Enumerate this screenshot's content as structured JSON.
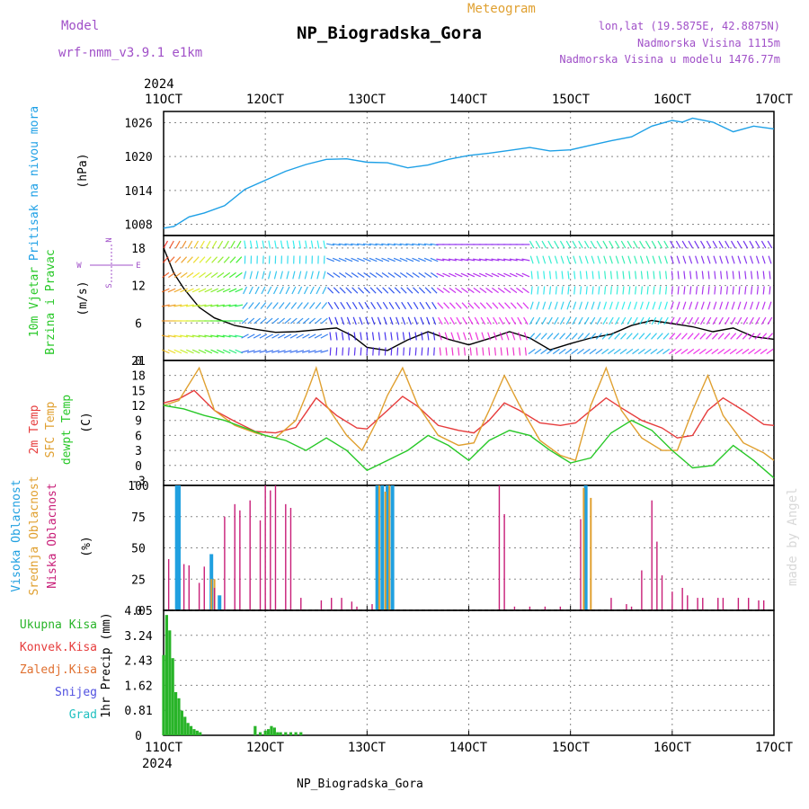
{
  "header": {
    "model_label": "Model",
    "model_name": "wrf-nmm_v3.9.1 e1km",
    "meteogram_label": "Meteogram",
    "station_title": "NP_Biogradska_Gora",
    "lonlat": "lon,lat (19.5875E, 42.8875N)",
    "elevation": "Nadmorska Visina 1115m",
    "model_elevation": "Nadmorska Visina u modelu 1476.77m",
    "year_top": "2024",
    "year_bottom": "2024",
    "footer_station": "NP_Biogradska_Gora",
    "watermark": "made by Angel"
  },
  "colors": {
    "pressure": "#1ea0e6",
    "temp2m": "#e63c3c",
    "sfc": "#e0a030",
    "dew": "#28c828",
    "precip": "#28b428",
    "label_purple": "#a050c8",
    "high_cloud": "#20a0e0",
    "mid_cloud": "#e0a030",
    "low_cloud": "#c81e78",
    "grid": "#888888"
  },
  "chart_data": [
    {
      "type": "line",
      "panel": "pressure",
      "ylabel_lines": [
        "Pritisak na nivou mora"
      ],
      "unit": "(hPa)",
      "x_ticks": [
        "11OCT",
        "12OCT",
        "13OCT",
        "14OCT",
        "15OCT",
        "16OCT",
        "17OCT"
      ],
      "ylim": [
        1006,
        1028
      ],
      "y_ticks": [
        1008,
        1014,
        1020,
        1026
      ],
      "grid": true,
      "series": [
        {
          "x": [
            11.0,
            11.1,
            11.25,
            11.4,
            11.6,
            11.8,
            12.0,
            12.2,
            12.4,
            12.6,
            12.8,
            13.0,
            13.2,
            13.4,
            13.6,
            13.8,
            14.0,
            14.2,
            14.4,
            14.6,
            14.8,
            15.0,
            15.2,
            15.4,
            15.6,
            15.8,
            16.0,
            16.1,
            16.2,
            16.4,
            16.6,
            16.8,
            17.0
          ],
          "y": [
            1007.3,
            1007.6,
            1009.3,
            1010.0,
            1011.3,
            1014.2,
            1015.8,
            1017.4,
            1018.6,
            1019.5,
            1019.6,
            1019.0,
            1018.9,
            1018.0,
            1018.5,
            1019.5,
            1020.2,
            1020.6,
            1021.1,
            1021.6,
            1021.0,
            1021.2,
            1022.0,
            1022.8,
            1023.5,
            1025.4,
            1026.4,
            1026.1,
            1026.8,
            1026.1,
            1024.4,
            1025.4,
            1024.9
          ]
        }
      ]
    },
    {
      "type": "line",
      "panel": "wind",
      "ylabel_lines": [
        "10m Vjetar",
        "Brzina i Pravac"
      ],
      "unit": "(m/s)",
      "compass": [
        "N",
        "W",
        "E",
        "S"
      ],
      "ylim": [
        0,
        20
      ],
      "y_ticks": [
        0,
        6,
        12,
        18
      ],
      "grid": true,
      "series": [
        {
          "x": [
            11.0,
            11.1,
            11.2,
            11.35,
            11.5,
            11.7,
            11.9,
            12.1,
            12.3,
            12.5,
            12.7,
            12.85,
            13.0,
            13.2,
            13.4,
            13.6,
            13.8,
            14.0,
            14.2,
            14.4,
            14.6,
            14.8,
            15.0,
            15.2,
            15.4,
            15.6,
            15.8,
            16.0,
            16.2,
            16.4,
            16.6,
            16.8,
            17.0
          ],
          "y": [
            18.0,
            14.0,
            11.5,
            8.5,
            6.8,
            5.6,
            5.0,
            4.5,
            4.6,
            4.9,
            5.2,
            4.0,
            2.1,
            1.6,
            3.3,
            4.6,
            3.4,
            2.5,
            3.5,
            4.6,
            3.6,
            1.7,
            2.7,
            3.6,
            4.2,
            5.6,
            6.4,
            5.9,
            5.4,
            4.6,
            5.2,
            3.8,
            3.4
          ]
        }
      ]
    },
    {
      "type": "line",
      "panel": "temperature",
      "ylabel_lines": [
        "2m Temp",
        "SFC Temp",
        "dewpt Temp"
      ],
      "unit": "(C)",
      "ylim": [
        -4,
        21
      ],
      "y_ticks": [
        -3,
        0,
        3,
        6,
        9,
        12,
        15,
        18,
        21
      ],
      "grid": true,
      "series": [
        {
          "name": "2m Temp",
          "x": [
            11.0,
            11.15,
            11.3,
            11.5,
            11.7,
            11.9,
            12.1,
            12.3,
            12.5,
            12.7,
            12.9,
            13.0,
            13.2,
            13.35,
            13.5,
            13.7,
            13.9,
            14.05,
            14.2,
            14.35,
            14.5,
            14.7,
            14.9,
            15.05,
            15.2,
            15.35,
            15.5,
            15.7,
            15.9,
            16.05,
            16.2,
            16.35,
            16.5,
            16.7,
            16.9,
            17.0
          ],
          "y": [
            12.5,
            13.3,
            15.0,
            11.0,
            8.8,
            6.8,
            6.5,
            7.6,
            13.5,
            10.0,
            7.5,
            7.3,
            11.0,
            13.8,
            11.8,
            8.0,
            7.0,
            6.5,
            9.0,
            12.5,
            11.0,
            8.5,
            8.0,
            8.5,
            11.0,
            13.5,
            11.5,
            9.0,
            7.5,
            5.5,
            6.0,
            11.0,
            13.5,
            11.0,
            8.2,
            8.0
          ]
        },
        {
          "name": "SFC Temp",
          "x": [
            11.0,
            11.15,
            11.35,
            11.5,
            11.7,
            11.9,
            12.1,
            12.3,
            12.4,
            12.5,
            12.6,
            12.8,
            12.95,
            13.1,
            13.2,
            13.35,
            13.5,
            13.7,
            13.9,
            14.05,
            14.2,
            14.35,
            14.5,
            14.7,
            14.9,
            15.05,
            15.2,
            15.35,
            15.5,
            15.7,
            15.9,
            16.05,
            16.2,
            16.35,
            16.5,
            16.7,
            16.9,
            17.0
          ],
          "y": [
            12.0,
            13.0,
            19.5,
            11.0,
            8.0,
            6.5,
            5.5,
            9.0,
            14.0,
            19.5,
            12.0,
            6.0,
            3.0,
            9.0,
            14.0,
            19.5,
            12.0,
            6.0,
            4.0,
            4.5,
            11.0,
            18.0,
            12.0,
            5.0,
            2.0,
            1.0,
            12.0,
            19.5,
            11.0,
            5.5,
            3.0,
            3.0,
            11.0,
            18.0,
            10.0,
            4.5,
            2.5,
            1.0
          ]
        },
        {
          "name": "dewpt Temp",
          "x": [
            11.0,
            11.2,
            11.4,
            11.6,
            11.8,
            12.0,
            12.2,
            12.4,
            12.6,
            12.8,
            13.0,
            13.2,
            13.4,
            13.6,
            13.8,
            14.0,
            14.2,
            14.4,
            14.6,
            14.8,
            15.0,
            15.2,
            15.4,
            15.6,
            15.8,
            16.0,
            16.2,
            16.4,
            16.6,
            16.8,
            17.0
          ],
          "y": [
            12.0,
            11.3,
            10.0,
            9.0,
            7.5,
            6.0,
            5.0,
            3.0,
            5.5,
            3.0,
            -1.0,
            1.0,
            3.0,
            6.0,
            4.0,
            1.0,
            5.0,
            7.0,
            6.0,
            3.0,
            0.5,
            1.5,
            6.5,
            9.0,
            7.0,
            3.0,
            -0.5,
            0.0,
            4.0,
            1.0,
            -2.5
          ]
        }
      ]
    },
    {
      "type": "bar",
      "panel": "clouds",
      "ylabel_lines": [
        "Visoka Oblacnost",
        "Srednja Oblacnost",
        "Niska Oblacnost"
      ],
      "unit": "(%)",
      "ylim": [
        0,
        100
      ],
      "y_ticks": [
        0,
        25,
        50,
        75,
        100
      ],
      "grid": true,
      "series": [
        {
          "name": "Visoka Oblacnost",
          "x": [
            11.13,
            11.15,
            11.47,
            11.55,
            13.1,
            13.15,
            13.2,
            13.25,
            15.15
          ],
          "values": [
            100,
            100,
            45,
            12,
            100,
            100,
            100,
            100,
            100
          ]
        },
        {
          "name": "Srednja Oblacnost",
          "x": [
            11.47,
            11.5,
            13.12,
            13.18,
            13.22,
            15.13,
            15.2
          ],
          "values": [
            25,
            25,
            100,
            95,
            100,
            98,
            90
          ]
        },
        {
          "name": "Niska Oblacnost",
          "x": [
            11.05,
            11.2,
            11.25,
            11.35,
            11.4,
            11.5,
            11.6,
            11.7,
            11.75,
            11.85,
            11.95,
            12.0,
            12.05,
            12.1,
            12.2,
            12.25,
            12.35,
            12.55,
            12.65,
            12.75,
            12.85,
            12.9,
            13.05,
            14.3,
            14.35,
            14.45,
            14.6,
            14.75,
            14.9,
            15.1,
            15.4,
            15.55,
            15.6,
            15.7,
            15.8,
            15.85,
            15.9,
            16.0,
            16.1,
            16.15,
            16.25,
            16.3,
            16.45,
            16.5,
            16.65,
            16.75,
            16.85,
            16.9
          ],
          "values": [
            41,
            37,
            36,
            22,
            35,
            18,
            75,
            85,
            80,
            88,
            72,
            100,
            96,
            100,
            85,
            82,
            10,
            8,
            10,
            10,
            7,
            3,
            5,
            100,
            77,
            3,
            3,
            3,
            3,
            73,
            10,
            5,
            3,
            32,
            88,
            55,
            28,
            15,
            18,
            12,
            10,
            10,
            10,
            10,
            10,
            10,
            8,
            8
          ]
        }
      ]
    },
    {
      "type": "bar",
      "panel": "precip",
      "legend": [
        "Ukupna Kisa",
        "Konvek.Kisa",
        "Zaledj.Kisa",
        "Snijeg",
        "Grad"
      ],
      "legend_colors": [
        "#28b428",
        "#e63c3c",
        "#e07030",
        "#5050e0",
        "#20c0c0"
      ],
      "ylabel": "1hr Precip (mm)",
      "ylim": [
        0,
        4.05
      ],
      "y_ticks": [
        "0",
        "0.81",
        "1.62",
        "2.43",
        "3.24",
        "4.05"
      ],
      "x_ticks": [
        "11OCT",
        "12OCT",
        "13OCT",
        "14OCT",
        "15OCT",
        "16OCT",
        "17OCT"
      ],
      "grid": true,
      "series": [
        {
          "name": "Ukupna Kisa",
          "x": [
            11.0,
            11.03,
            11.06,
            11.09,
            11.12,
            11.15,
            11.18,
            11.21,
            11.24,
            11.27,
            11.3,
            11.33,
            11.36,
            11.9,
            11.95,
            12.0,
            12.03,
            12.06,
            12.09,
            12.12,
            12.15,
            12.2,
            12.25,
            12.3,
            12.35
          ],
          "values": [
            2.6,
            3.9,
            3.4,
            2.5,
            1.4,
            1.2,
            0.8,
            0.6,
            0.4,
            0.3,
            0.2,
            0.15,
            0.1,
            0.3,
            0.1,
            0.15,
            0.2,
            0.3,
            0.25,
            0.1,
            0.1,
            0.1,
            0.1,
            0.1,
            0.1
          ]
        }
      ]
    }
  ]
}
